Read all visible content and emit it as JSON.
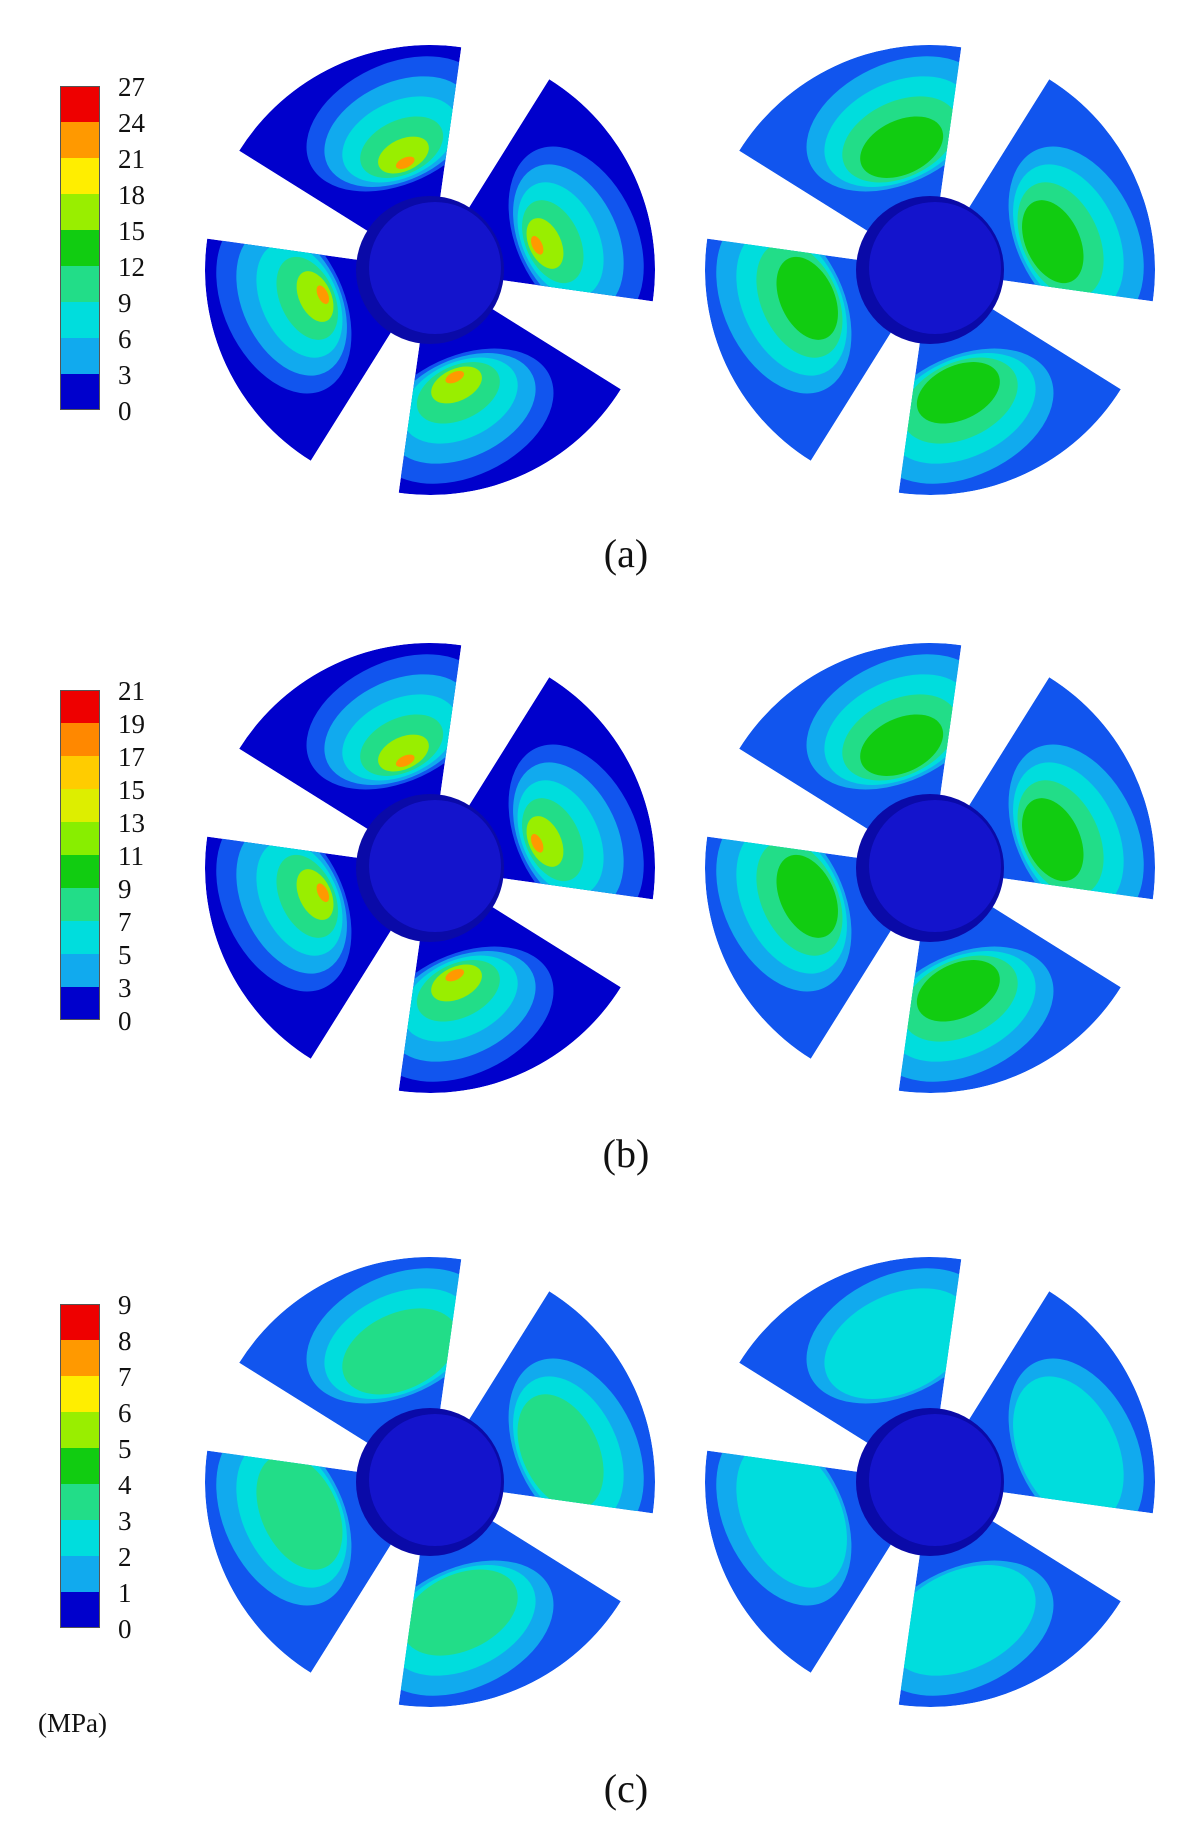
{
  "panels": [
    {
      "caption": "(a)",
      "scale_labels": [
        "27",
        "24",
        "21",
        "18",
        "15",
        "12",
        "9",
        "6",
        "3",
        "0"
      ],
      "unit": ""
    },
    {
      "caption": "(b)",
      "scale_labels": [
        "21",
        "19",
        "17",
        "15",
        "13",
        "11",
        "9",
        "7",
        "5",
        "3",
        "0"
      ],
      "unit": ""
    },
    {
      "caption": "(c)",
      "scale_labels": [
        "9",
        "8",
        "7",
        "6",
        "5",
        "4",
        "3",
        "2",
        "1",
        "0"
      ],
      "unit": "(MPa)"
    }
  ],
  "palette": [
    "#ee0000",
    "#ff9900",
    "#ffee00",
    "#99ee00",
    "#11cc11",
    "#22dd88",
    "#00dddd",
    "#11aaee",
    "#1155ee",
    "#0000cc"
  ],
  "palette_11": [
    "#ee0000",
    "#ff8800",
    "#ffcc00",
    "#ddee00",
    "#88ee00",
    "#11cc11",
    "#22dd88",
    "#00dddd",
    "#11aaee",
    "#1155ee",
    "#0000cc"
  ]
}
